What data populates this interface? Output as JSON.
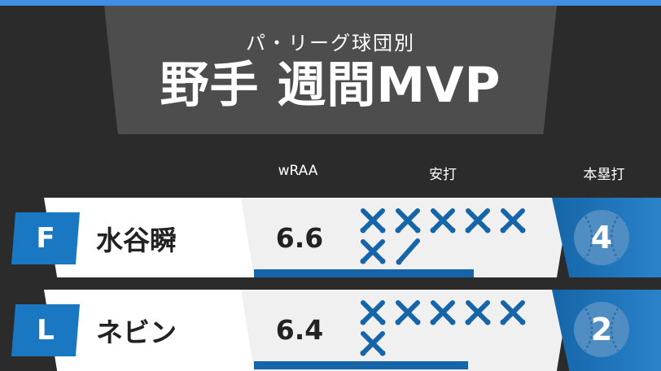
{
  "header": {
    "subtitle": "パ・リーグ球団別",
    "title": "野手 週間MVP"
  },
  "columns": {
    "wraa": "wRAA",
    "hits": "安打",
    "hr": "本塁打"
  },
  "colors": {
    "accent": "#3d8fe6",
    "badge": "#1a78c2",
    "bar": "#1565a8"
  },
  "players": [
    {
      "team": "F",
      "name": "水谷瞬",
      "wraa": "6.6",
      "wraa_fill": 0.75,
      "hits_x": 6,
      "hits_single": 1,
      "hr": "4"
    },
    {
      "team": "L",
      "name": "ネビン",
      "wraa": "6.4",
      "wraa_fill": 0.73,
      "hits_x": 6,
      "hits_single": 0,
      "hr": "2"
    }
  ]
}
